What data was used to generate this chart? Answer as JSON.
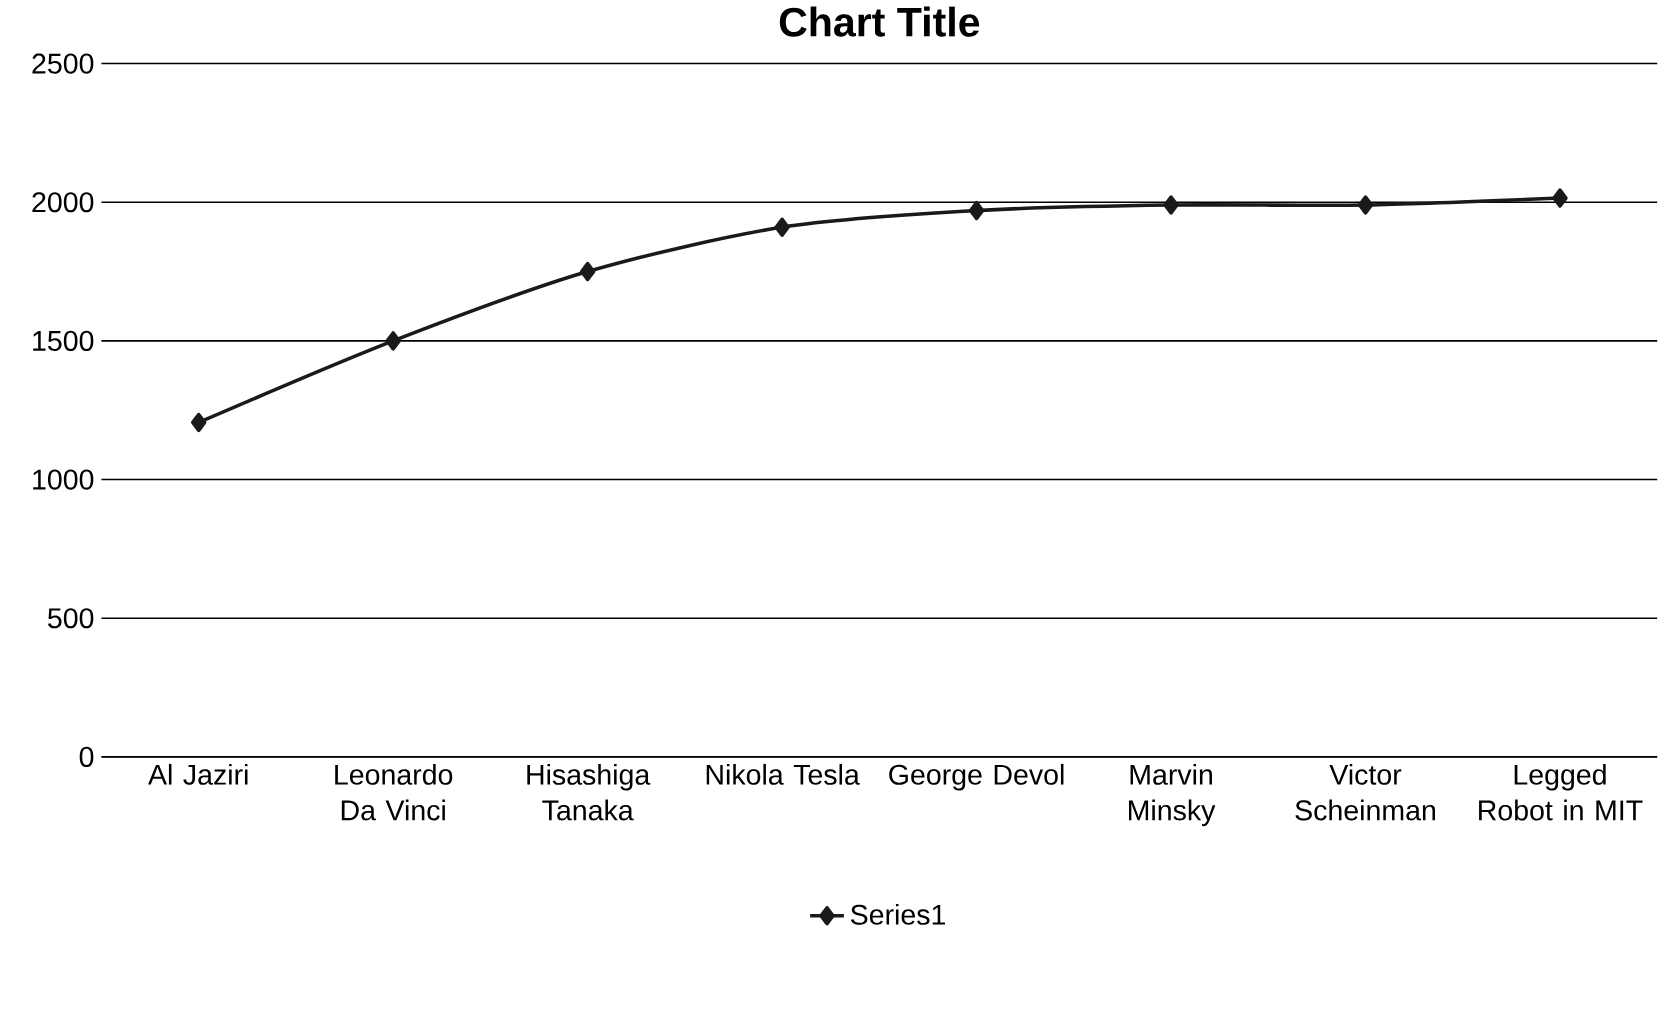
{
  "chart_data": {
    "type": "line",
    "title": "Chart Title",
    "categories": [
      "Al Jaziri",
      "Leonardo Da Vinci",
      "Hisashiga Tanaka",
      "Nikola Tesla",
      "George Devol",
      "Marvin Minsky",
      "Victor Scheinman",
      "Legged Robot in MIT"
    ],
    "series": [
      {
        "name": "Series1",
        "color": "#1a1a1a",
        "values": [
          1206,
          1500,
          1750,
          1910,
          1970,
          1990,
          1990,
          2015
        ]
      }
    ],
    "ylim": [
      0,
      2500
    ],
    "yticks": [
      0,
      500,
      1000,
      1500,
      2000,
      2500
    ],
    "grid": "y",
    "legend": "bottom",
    "marker": "diamond",
    "line_style": "solid"
  }
}
